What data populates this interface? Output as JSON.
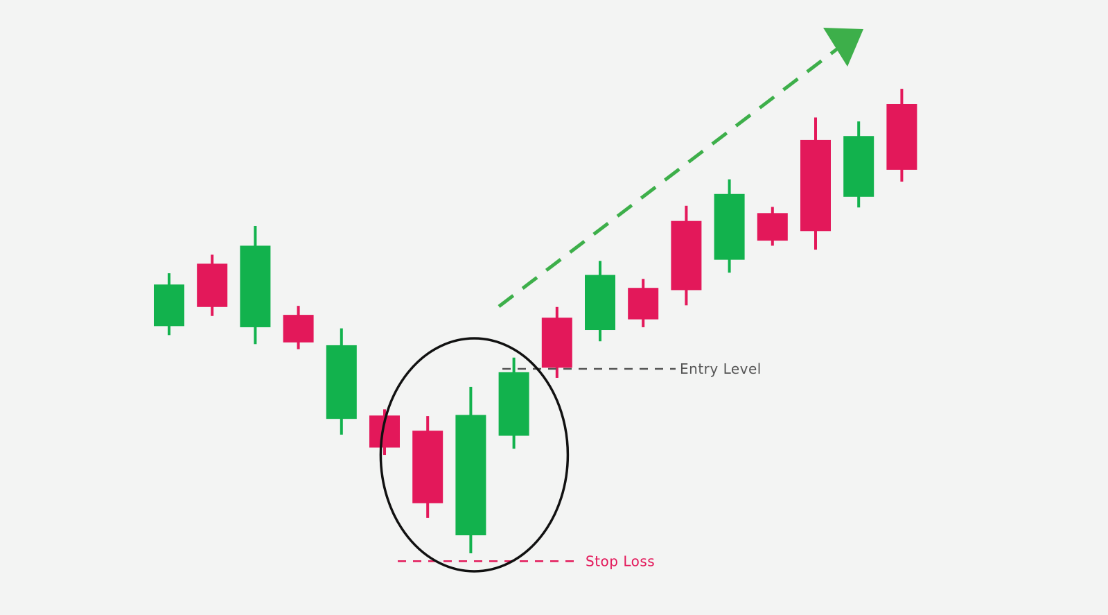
{
  "chart_data": {
    "type": "candlestick",
    "title": "",
    "xlabel": "",
    "ylabel": "",
    "grid": false,
    "colors": {
      "bullish": "#12b24d",
      "bearish": "#e3185a",
      "entry": "#555555",
      "stop": "#e3185a",
      "trend": "#3daf4a",
      "circle": "#111111",
      "background": "#f3f4f3"
    },
    "ylim": [
      0,
      100
    ],
    "candles": [
      {
        "direction": "up",
        "open": 47.8,
        "close": 55.2,
        "high": 57.2,
        "low": 46.2
      },
      {
        "direction": "down",
        "open": 58.9,
        "close": 51.2,
        "high": 60.5,
        "low": 49.6
      },
      {
        "direction": "up",
        "open": 47.6,
        "close": 62.1,
        "high": 65.6,
        "low": 44.6
      },
      {
        "direction": "down",
        "open": 49.8,
        "close": 44.9,
        "high": 51.4,
        "low": 43.7
      },
      {
        "direction": "up",
        "open": 31.3,
        "close": 44.4,
        "high": 47.4,
        "low": 28.5
      },
      {
        "direction": "down",
        "open": 31.9,
        "close": 26.2,
        "high": 33.0,
        "low": 24.9
      },
      {
        "direction": "down",
        "open": 29.2,
        "close": 16.3,
        "high": 31.8,
        "low": 13.7
      },
      {
        "direction": "up",
        "open": 10.6,
        "close": 32.0,
        "high": 37.0,
        "low": 7.4
      },
      {
        "direction": "up",
        "open": 28.3,
        "close": 39.6,
        "high": 42.2,
        "low": 26.0
      },
      {
        "direction": "down",
        "open": 49.3,
        "close": 40.4,
        "high": 51.2,
        "low": 38.6
      },
      {
        "direction": "up",
        "open": 47.1,
        "close": 56.9,
        "high": 59.4,
        "low": 45.1
      },
      {
        "direction": "down",
        "open": 54.6,
        "close": 49.0,
        "high": 56.2,
        "low": 47.6
      },
      {
        "direction": "down",
        "open": 66.5,
        "close": 54.2,
        "high": 69.2,
        "low": 51.5
      },
      {
        "direction": "up",
        "open": 59.6,
        "close": 71.3,
        "high": 73.9,
        "low": 57.3
      },
      {
        "direction": "down",
        "open": 67.9,
        "close": 63.0,
        "high": 69.0,
        "low": 62.1
      },
      {
        "direction": "down",
        "open": 80.9,
        "close": 64.7,
        "high": 84.9,
        "low": 61.4
      },
      {
        "direction": "up",
        "open": 70.8,
        "close": 81.6,
        "high": 84.2,
        "low": 68.9
      },
      {
        "direction": "down",
        "open": 87.3,
        "close": 75.6,
        "high": 90.0,
        "low": 73.5
      }
    ],
    "entry_level": {
      "label": "Entry Level",
      "value": 40.2
    },
    "stop_loss": {
      "label": "Stop Loss",
      "value": 6.0
    },
    "highlight": {
      "type": "ellipse",
      "candles": [
        6,
        7,
        8
      ]
    },
    "trend_arrow": {
      "direction": "up",
      "style": "dashed"
    }
  }
}
